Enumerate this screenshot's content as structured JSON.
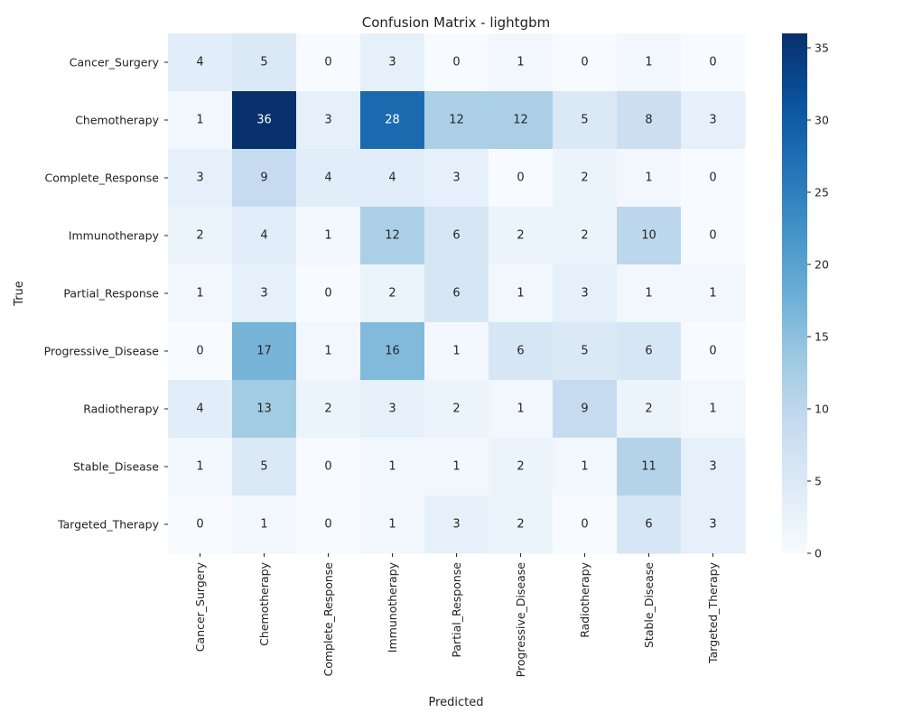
{
  "chart_data": {
    "type": "heatmap",
    "title": "Confusion Matrix - lightgbm",
    "xlabel": "Predicted",
    "ylabel": "True",
    "x_categories": [
      "Cancer_Surgery",
      "Chemotherapy",
      "Complete_Response",
      "Immunotherapy",
      "Partial_Response",
      "Progressive_Disease",
      "Radiotherapy",
      "Stable_Disease",
      "Targeted_Therapy"
    ],
    "y_categories": [
      "Cancer_Surgery",
      "Chemotherapy",
      "Complete_Response",
      "Immunotherapy",
      "Partial_Response",
      "Progressive_Disease",
      "Radiotherapy",
      "Stable_Disease",
      "Targeted_Therapy"
    ],
    "values": [
      [
        4,
        5,
        0,
        3,
        0,
        1,
        0,
        1,
        0
      ],
      [
        1,
        36,
        3,
        28,
        12,
        12,
        5,
        8,
        3
      ],
      [
        3,
        9,
        4,
        4,
        3,
        0,
        2,
        1,
        0
      ],
      [
        2,
        4,
        1,
        12,
        6,
        2,
        2,
        10,
        0
      ],
      [
        1,
        3,
        0,
        2,
        6,
        1,
        3,
        1,
        1
      ],
      [
        0,
        17,
        1,
        16,
        1,
        6,
        5,
        6,
        0
      ],
      [
        4,
        13,
        2,
        3,
        2,
        1,
        9,
        2,
        1
      ],
      [
        1,
        5,
        0,
        1,
        1,
        2,
        1,
        11,
        3
      ],
      [
        0,
        1,
        0,
        1,
        3,
        2,
        0,
        6,
        3
      ]
    ],
    "colormap": "Blues",
    "vmin": 0,
    "vmax": 36,
    "colorbar_ticks": [
      0,
      5,
      10,
      15,
      20,
      25,
      30,
      35
    ],
    "annotated": true,
    "grid": false
  }
}
